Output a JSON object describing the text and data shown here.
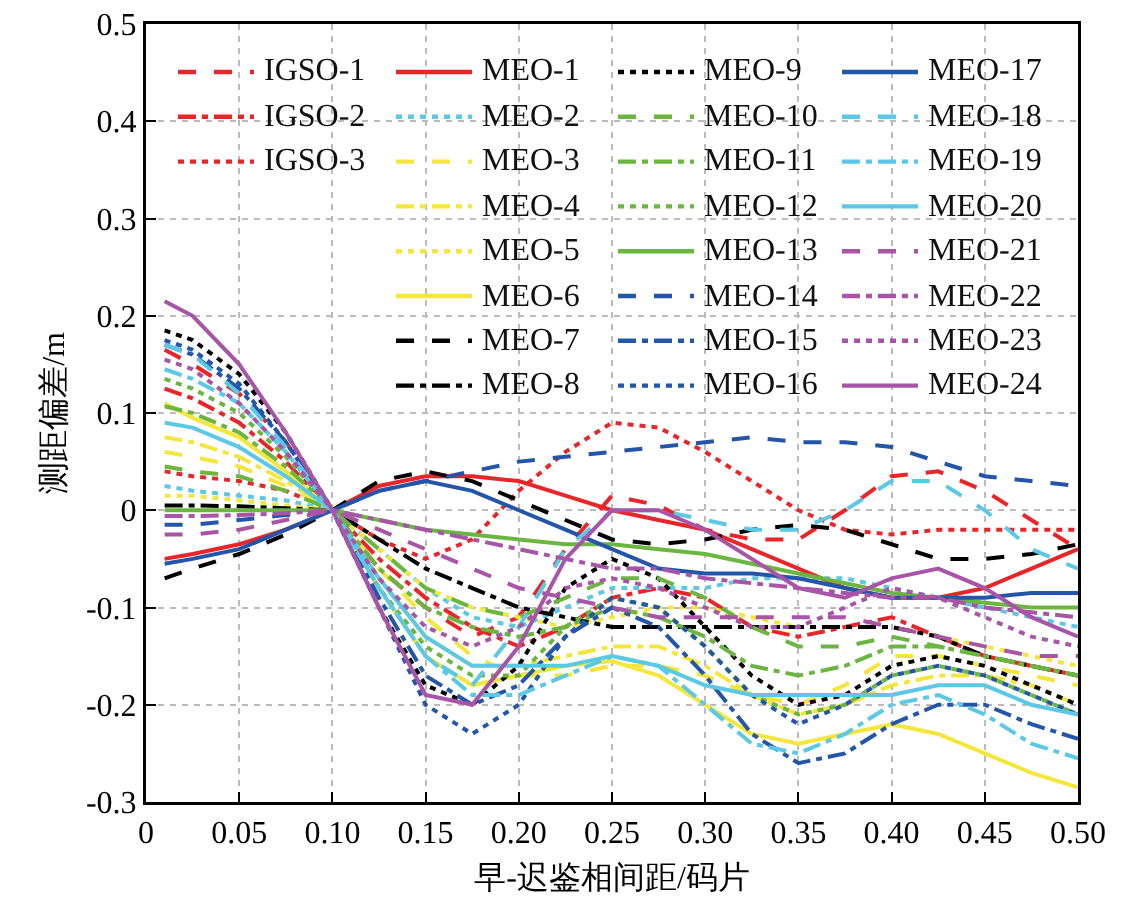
{
  "chart_data": {
    "type": "line",
    "xlabel": "早-迟鉴相间距/码片",
    "ylabel": "测距偏差/m",
    "x": [
      0.01,
      0.025,
      0.05,
      0.075,
      0.1,
      0.125,
      0.15,
      0.175,
      0.2,
      0.225,
      0.25,
      0.275,
      0.3,
      0.325,
      0.35,
      0.375,
      0.4,
      0.425,
      0.45,
      0.475,
      0.5
    ],
    "xlim": [
      0,
      0.5
    ],
    "xticks": [
      0,
      0.05,
      {
        "value": 0.1,
        "label": "0.10"
      },
      0.15,
      {
        "value": 0.2,
        "label": "0.20"
      },
      0.25,
      {
        "value": 0.3,
        "label": "0.30"
      },
      0.35,
      {
        "value": 0.4,
        "label": "0.40"
      },
      0.45,
      {
        "value": 0.5,
        "label": "0.50"
      }
    ],
    "ylim": [
      -0.3,
      0.5
    ],
    "yticks": [
      -0.3,
      -0.2,
      -0.1,
      0,
      0.1,
      0.2,
      0.3,
      0.4,
      0.5
    ],
    "grid": true,
    "legend": "top",
    "marker": "none",
    "series": [
      {
        "name": "IGSO-1",
        "color": "#e8262a",
        "line_style": "dashed",
        "values": [
          0.165,
          0.15,
          0.12,
          0.07,
          0,
          -0.06,
          -0.1,
          -0.13,
          -0.11,
          -0.04,
          0.015,
          0.005,
          -0.02,
          -0.03,
          -0.03,
          0,
          0.035,
          0.04,
          0.02,
          -0.01,
          -0.04
        ]
      },
      {
        "name": "IGSO-2",
        "color": "#e8262a",
        "line_style": "dashdot",
        "values": [
          0.125,
          0.115,
          0.09,
          0.05,
          0,
          -0.05,
          -0.09,
          -0.12,
          -0.14,
          -0.12,
          -0.09,
          -0.08,
          -0.09,
          -0.12,
          -0.13,
          -0.12,
          -0.11,
          -0.13,
          -0.15,
          -0.16,
          -0.17
        ]
      },
      {
        "name": "IGSO-3",
        "color": "#e8262a",
        "line_style": "dotted",
        "values": [
          0.04,
          0.035,
          0.03,
          0.02,
          0,
          -0.03,
          -0.05,
          -0.03,
          0.02,
          0.06,
          0.09,
          0.085,
          0.06,
          0.03,
          0,
          -0.02,
          -0.025,
          -0.02,
          -0.02,
          -0.02,
          -0.02
        ]
      },
      {
        "name": "MEO-1",
        "color": "#e8262a",
        "line_style": "solid",
        "values": [
          -0.05,
          -0.045,
          -0.035,
          -0.02,
          0,
          0.025,
          0.035,
          0.035,
          0.03,
          0.015,
          0,
          -0.01,
          -0.02,
          -0.04,
          -0.06,
          -0.08,
          -0.09,
          -0.09,
          -0.08,
          -0.06,
          -0.04
        ]
      },
      {
        "name": "MEO-2",
        "color": "#5bc8e6",
        "line_style": "dotted",
        "values": [
          0.025,
          0.02,
          0.015,
          0.01,
          0,
          -0.04,
          -0.08,
          -0.11,
          -0.12,
          -0.1,
          -0.08,
          -0.08,
          -0.08,
          -0.07,
          -0.07,
          -0.07,
          -0.08,
          -0.09,
          -0.1,
          -0.11,
          -0.12
        ]
      },
      {
        "name": "MEO-3",
        "color": "#f5e63c",
        "line_style": "dashed",
        "values": [
          0.06,
          0.055,
          0.045,
          0.025,
          0,
          -0.06,
          -0.11,
          -0.15,
          -0.17,
          -0.17,
          -0.16,
          -0.16,
          -0.17,
          -0.19,
          -0.2,
          -0.18,
          -0.15,
          -0.15,
          -0.16,
          -0.17,
          -0.18
        ]
      },
      {
        "name": "MEO-4",
        "color": "#f5e63c",
        "line_style": "dashdot",
        "values": [
          0.075,
          0.07,
          0.055,
          0.03,
          0,
          -0.07,
          -0.13,
          -0.16,
          -0.16,
          -0.15,
          -0.14,
          -0.14,
          -0.16,
          -0.19,
          -0.21,
          -0.2,
          -0.18,
          -0.17,
          -0.17,
          -0.18,
          -0.2
        ]
      },
      {
        "name": "MEO-5",
        "color": "#f5e63c",
        "line_style": "dotted",
        "values": [
          0.015,
          0.015,
          0.01,
          0.005,
          0,
          -0.04,
          -0.08,
          -0.1,
          -0.11,
          -0.12,
          -0.11,
          -0.1,
          -0.1,
          -0.11,
          -0.12,
          -0.12,
          -0.12,
          -0.13,
          -0.14,
          -0.15,
          -0.16
        ]
      },
      {
        "name": "MEO-6",
        "color": "#f5e63c",
        "line_style": "solid",
        "values": [
          0.11,
          0.095,
          0.075,
          0.04,
          0,
          -0.08,
          -0.15,
          -0.18,
          -0.17,
          -0.16,
          -0.155,
          -0.17,
          -0.2,
          -0.23,
          -0.24,
          -0.23,
          -0.22,
          -0.23,
          -0.25,
          -0.27,
          -0.285
        ]
      },
      {
        "name": "MEO-7",
        "color": "#000000",
        "line_style": "dashed",
        "values": [
          -0.07,
          -0.06,
          -0.045,
          -0.025,
          0,
          0.03,
          0.04,
          0.03,
          0.01,
          -0.01,
          -0.03,
          -0.035,
          -0.03,
          -0.02,
          -0.015,
          -0.02,
          -0.035,
          -0.05,
          -0.05,
          -0.045,
          -0.035
        ]
      },
      {
        "name": "MEO-8",
        "color": "#000000",
        "line_style": "dashdot",
        "values": [
          0.005,
          0.005,
          0.004,
          0.002,
          0,
          -0.03,
          -0.06,
          -0.08,
          -0.1,
          -0.11,
          -0.12,
          -0.12,
          -0.12,
          -0.12,
          -0.12,
          -0.12,
          -0.12,
          -0.13,
          -0.15,
          -0.16,
          -0.17
        ]
      },
      {
        "name": "MEO-9",
        "color": "#000000",
        "line_style": "dotted",
        "values": [
          0.185,
          0.175,
          0.14,
          0.08,
          0,
          -0.1,
          -0.18,
          -0.2,
          -0.16,
          -0.08,
          -0.05,
          -0.07,
          -0.12,
          -0.17,
          -0.2,
          -0.19,
          -0.16,
          -0.15,
          -0.16,
          -0.18,
          -0.2
        ]
      },
      {
        "name": "MEO-10",
        "color": "#6ab640",
        "line_style": "dashed",
        "values": [
          0.045,
          0.04,
          0.035,
          0.02,
          0,
          -0.04,
          -0.08,
          -0.1,
          -0.11,
          -0.09,
          -0.07,
          -0.07,
          -0.09,
          -0.12,
          -0.14,
          -0.14,
          -0.13,
          -0.14,
          -0.15,
          -0.16,
          -0.17
        ]
      },
      {
        "name": "MEO-11",
        "color": "#6ab640",
        "line_style": "dashdot",
        "values": [
          0.107,
          0.1,
          0.08,
          0.045,
          0,
          -0.06,
          -0.1,
          -0.12,
          -0.13,
          -0.12,
          -0.1,
          -0.11,
          -0.13,
          -0.16,
          -0.17,
          -0.16,
          -0.14,
          -0.14,
          -0.15,
          -0.16,
          -0.17
        ]
      },
      {
        "name": "MEO-12",
        "color": "#6ab640",
        "line_style": "dotted",
        "values": [
          0.135,
          0.125,
          0.1,
          0.055,
          0,
          -0.08,
          -0.14,
          -0.17,
          -0.17,
          -0.12,
          -0.09,
          -0.1,
          -0.14,
          -0.19,
          -0.21,
          -0.2,
          -0.17,
          -0.16,
          -0.17,
          -0.19,
          -0.21
        ]
      },
      {
        "name": "MEO-13",
        "color": "#6ab640",
        "line_style": "solid",
        "values": [
          0,
          0,
          0,
          0,
          0,
          -0.01,
          -0.02,
          -0.025,
          -0.03,
          -0.035,
          -0.035,
          -0.04,
          -0.045,
          -0.055,
          -0.065,
          -0.075,
          -0.085,
          -0.09,
          -0.095,
          -0.1,
          -0.1
        ]
      },
      {
        "name": "MEO-14",
        "color": "#2356a8",
        "line_style": "dashed",
        "values": [
          -0.015,
          -0.015,
          -0.01,
          -0.005,
          0,
          0.02,
          0.03,
          0.04,
          0.05,
          0.055,
          0.06,
          0.065,
          0.07,
          0.075,
          0.07,
          0.07,
          0.065,
          0.05,
          0.035,
          0.03,
          0.025
        ]
      },
      {
        "name": "MEO-15",
        "color": "#2356a8",
        "line_style": "dashdot",
        "values": [
          0.17,
          0.16,
          0.125,
          0.07,
          0,
          -0.09,
          -0.17,
          -0.2,
          -0.18,
          -0.13,
          -0.1,
          -0.12,
          -0.17,
          -0.23,
          -0.26,
          -0.25,
          -0.22,
          -0.2,
          -0.2,
          -0.22,
          -0.235
        ]
      },
      {
        "name": "MEO-16",
        "color": "#2356a8",
        "line_style": "dotted",
        "values": [
          0.175,
          0.165,
          0.13,
          0.07,
          0,
          -0.1,
          -0.2,
          -0.23,
          -0.2,
          -0.13,
          -0.09,
          -0.1,
          -0.14,
          -0.19,
          -0.22,
          -0.2,
          -0.17,
          -0.16,
          -0.17,
          -0.19,
          -0.21
        ]
      },
      {
        "name": "MEO-17",
        "color": "#2356a8",
        "line_style": "solid",
        "values": [
          -0.055,
          -0.05,
          -0.04,
          -0.02,
          0,
          0.02,
          0.03,
          0.02,
          0,
          -0.02,
          -0.04,
          -0.06,
          -0.065,
          -0.065,
          -0.07,
          -0.08,
          -0.09,
          -0.09,
          -0.09,
          -0.085,
          -0.085
        ]
      },
      {
        "name": "MEO-18",
        "color": "#5bc8e6",
        "line_style": "dashed",
        "values": [
          0.17,
          0.16,
          0.12,
          0.065,
          0,
          -0.08,
          -0.15,
          -0.18,
          -0.12,
          -0.04,
          0,
          0,
          -0.01,
          -0.02,
          -0.02,
          0,
          0.03,
          0.03,
          0,
          -0.04,
          -0.06
        ]
      },
      {
        "name": "MEO-19",
        "color": "#5bc8e6",
        "line_style": "dashdot",
        "values": [
          0.145,
          0.135,
          0.11,
          0.06,
          0,
          -0.08,
          -0.15,
          -0.19,
          -0.19,
          -0.17,
          -0.15,
          -0.16,
          -0.2,
          -0.24,
          -0.25,
          -0.23,
          -0.2,
          -0.19,
          -0.21,
          -0.24,
          -0.255
        ]
      },
      {
        "name": "MEO-20",
        "color": "#5bc8e6",
        "line_style": "solid",
        "values": [
          0.09,
          0.085,
          0.065,
          0.035,
          0,
          -0.07,
          -0.13,
          -0.16,
          -0.16,
          -0.16,
          -0.15,
          -0.16,
          -0.18,
          -0.19,
          -0.19,
          -0.19,
          -0.19,
          -0.18,
          -0.18,
          -0.2,
          -0.21
        ]
      },
      {
        "name": "MEO-21",
        "color": "#a855a8",
        "line_style": "dashed",
        "values": [
          -0.025,
          -0.025,
          -0.02,
          -0.01,
          0,
          -0.02,
          -0.04,
          -0.06,
          -0.08,
          -0.09,
          -0.1,
          -0.11,
          -0.11,
          -0.11,
          -0.11,
          -0.11,
          -0.12,
          -0.13,
          -0.14,
          -0.15,
          -0.15
        ]
      },
      {
        "name": "MEO-22",
        "color": "#a855a8",
        "line_style": "dashdot",
        "values": [
          -0.006,
          -0.006,
          -0.005,
          -0.003,
          0,
          -0.01,
          -0.02,
          -0.03,
          -0.04,
          -0.05,
          -0.06,
          -0.06,
          -0.07,
          -0.075,
          -0.08,
          -0.085,
          -0.09,
          -0.09,
          -0.1,
          -0.105,
          -0.11
        ]
      },
      {
        "name": "MEO-23",
        "color": "#a855a8",
        "line_style": "dotted",
        "values": [
          0.155,
          0.145,
          0.11,
          0.06,
          0,
          -0.07,
          -0.12,
          -0.14,
          -0.12,
          -0.08,
          -0.07,
          -0.08,
          -0.1,
          -0.12,
          -0.12,
          -0.1,
          -0.08,
          -0.09,
          -0.11,
          -0.13,
          -0.14
        ]
      },
      {
        "name": "MEO-24",
        "color": "#a855a8",
        "line_style": "solid",
        "values": [
          0.215,
          0.2,
          0.15,
          0.08,
          0,
          -0.1,
          -0.19,
          -0.2,
          -0.14,
          -0.05,
          0,
          0,
          -0.02,
          -0.05,
          -0.08,
          -0.09,
          -0.07,
          -0.06,
          -0.08,
          -0.11,
          -0.13
        ]
      }
    ]
  }
}
